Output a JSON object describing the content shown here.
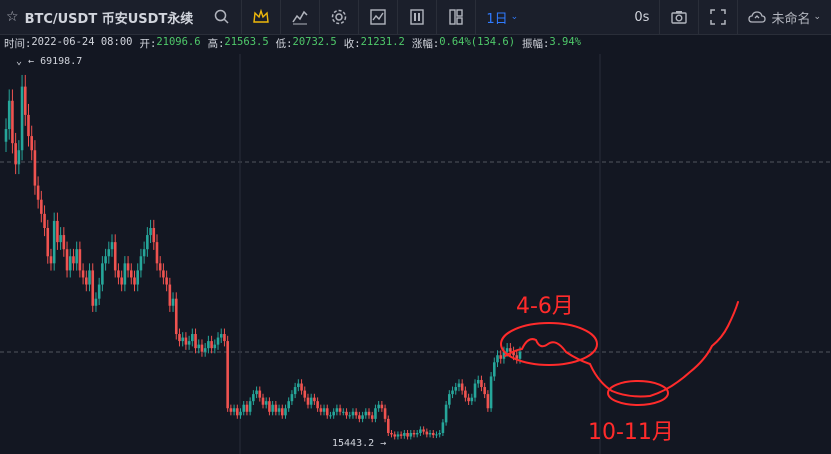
{
  "toolbar": {
    "symbol_title": "BTC/USDT 币安USDT永续",
    "interval": "1日",
    "countdown": "0s",
    "layout_name": "未命名",
    "icons": [
      "star-icon",
      "search-icon",
      "crown-icon",
      "indicator-icon",
      "gear-icon",
      "chart-type-icon",
      "template-icon",
      "layout-icon",
      "camera-icon",
      "fullscreen-icon",
      "cloud-icon",
      "chevron-down-icon"
    ]
  },
  "infobar": {
    "time_label": "时间:",
    "time_value": "2022-06-24 08:00",
    "open_label": "开:",
    "open_value": "21096.6",
    "high_label": "高:",
    "high_value": "21563.5",
    "low_label": "低:",
    "low_value": "20732.5",
    "close_label": "收:",
    "close_value": "21231.2",
    "change_label": "涨幅:",
    "change_value": "0.64%(134.6)",
    "amplitude_label": "振幅:",
    "amplitude_value": "3.94%"
  },
  "chart_data": {
    "type": "candlestick",
    "series_close": [
      60000,
      64000,
      58000,
      55000,
      57000,
      66000,
      62000,
      59000,
      57000,
      52000,
      50000,
      48000,
      46000,
      42000,
      41000,
      47000,
      44000,
      45000,
      43000,
      40000,
      42000,
      41000,
      43000,
      40000,
      39000,
      38000,
      40000,
      35000,
      36000,
      38000,
      41000,
      42000,
      43000,
      44000,
      40000,
      39000,
      38000,
      41000,
      40000,
      39000,
      38000,
      40000,
      42000,
      43000,
      45000,
      46000,
      44000,
      41000,
      40000,
      39000,
      38000,
      35000,
      36000,
      31000,
      30000,
      30500,
      29500,
      30000,
      31000,
      29000,
      29500,
      28500,
      29000,
      30000,
      29000,
      29500,
      30500,
      31000,
      30000,
      20500,
      20000,
      20500,
      19500,
      20000,
      21000,
      20000,
      21500,
      22500,
      23000,
      22000,
      21000,
      21500,
      20000,
      21000,
      20000,
      20500,
      19500,
      20500,
      21500,
      22500,
      23500,
      24000,
      23000,
      22000,
      21000,
      22000,
      21500,
      20500,
      20000,
      20500,
      19500,
      19500,
      20000,
      20500,
      20000,
      20000,
      19500,
      19500,
      20000,
      19500,
      19000,
      19500,
      20000,
      19500,
      19000,
      20500,
      21000,
      20500,
      19000,
      17000,
      16800,
      16500,
      16800,
      16600,
      17000,
      16500,
      17000,
      16800,
      17000,
      17500,
      17200,
      16800,
      17000,
      16700,
      16800,
      17000,
      18500,
      21000,
      22500,
      23000,
      23500,
      24000,
      23000,
      22000,
      21500,
      22000,
      24000,
      24500,
      23500,
      22500,
      20500,
      25000,
      27000,
      28000,
      27500,
      28500,
      29000,
      28500,
      28000,
      27500,
      28500
    ],
    "price_high_label": "69198.7",
    "price_low_label": "15443.2",
    "grid": "dashed horizontal and vertical",
    "annotations": [
      "4-6月",
      "10-11月"
    ],
    "colors": {
      "up": "#26a69a",
      "down": "#ef5350",
      "annotation": "#ff2b2b",
      "background": "#131722"
    }
  },
  "annotations": {
    "label_a": "4-6月",
    "label_b": "10-11月"
  }
}
